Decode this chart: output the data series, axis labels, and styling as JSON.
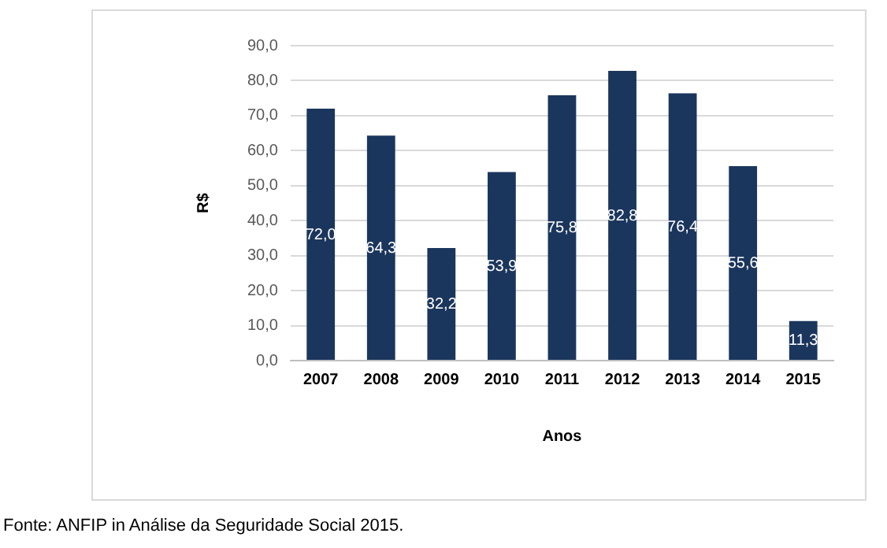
{
  "chart_data": {
    "type": "bar",
    "xlabel": "Anos",
    "ylabel": "R$",
    "categories": [
      "2007",
      "2008",
      "2009",
      "2010",
      "2011",
      "2012",
      "2013",
      "2014",
      "2015"
    ],
    "values": [
      72.0,
      64.3,
      32.2,
      53.9,
      75.8,
      82.8,
      76.4,
      55.6,
      11.3
    ],
    "value_labels": [
      "72,0",
      "64,3",
      "32,2",
      "53,9",
      "75,8",
      "82,8",
      "76,4",
      "55,6",
      "11,3"
    ],
    "color": "#1b365d",
    "ylim": [
      0,
      90
    ],
    "yticks": [
      {
        "value": 0,
        "label": "0,0"
      },
      {
        "value": 10,
        "label": "10,0"
      },
      {
        "value": 20,
        "label": "20,0"
      },
      {
        "value": 30,
        "label": "30,0"
      },
      {
        "value": 40,
        "label": "40,0"
      },
      {
        "value": 50,
        "label": "50,0"
      },
      {
        "value": 60,
        "label": "60,0"
      },
      {
        "value": 70,
        "label": "70,0"
      },
      {
        "value": 80,
        "label": "80,0"
      },
      {
        "value": 90,
        "label": "90,0"
      }
    ],
    "grid": "y",
    "legend": false,
    "annotations": [
      "Fonte: ANFIP in Análise da Seguridade Social 2015."
    ]
  }
}
